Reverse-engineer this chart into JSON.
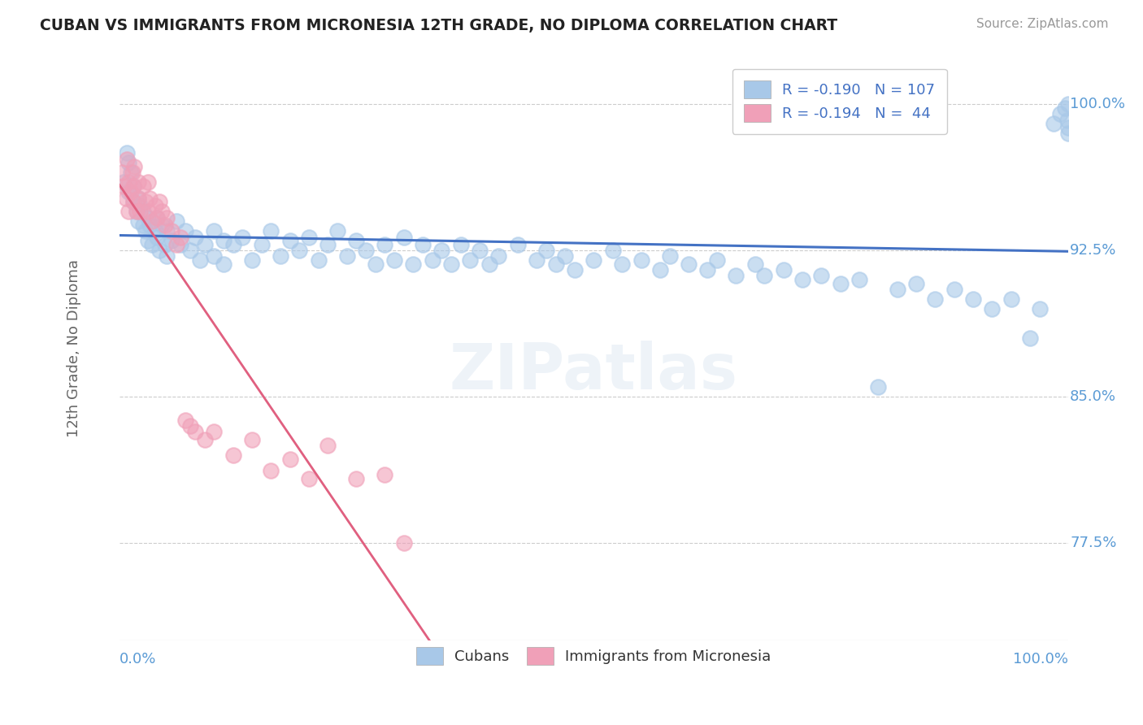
{
  "title": "CUBAN VS IMMIGRANTS FROM MICRONESIA 12TH GRADE, NO DIPLOMA CORRELATION CHART",
  "source": "Source: ZipAtlas.com",
  "ylabel": "12th Grade, No Diploma",
  "xmin": 0.0,
  "xmax": 1.0,
  "ymin": 0.725,
  "ymax": 1.025,
  "yticks": [
    0.775,
    0.85,
    0.925,
    1.0
  ],
  "ytick_labels": [
    "77.5%",
    "85.0%",
    "92.5%",
    "100.0%"
  ],
  "xtick_labels": [
    "0.0%",
    "100.0%"
  ],
  "cubans_R": -0.19,
  "cubans_N": 107,
  "micronesia_R": -0.194,
  "micronesia_N": 44,
  "blue_dot_color": "#a8c8e8",
  "pink_dot_color": "#f0a0b8",
  "blue_line_color": "#4472c4",
  "pink_line_color": "#e06080",
  "pink_dash_color": "#f4b8c8",
  "background_color": "#ffffff",
  "grid_color": "#cccccc",
  "axis_label_color": "#666666",
  "tick_label_color": "#5b9bd5",
  "watermark": "ZIPatlas",
  "blue_x": [
    0.005,
    0.008,
    0.01,
    0.01,
    0.012,
    0.015,
    0.015,
    0.018,
    0.02,
    0.02,
    0.022,
    0.025,
    0.025,
    0.028,
    0.03,
    0.03,
    0.032,
    0.035,
    0.038,
    0.04,
    0.04,
    0.042,
    0.045,
    0.048,
    0.05,
    0.05,
    0.055,
    0.06,
    0.065,
    0.07,
    0.075,
    0.08,
    0.085,
    0.09,
    0.1,
    0.1,
    0.11,
    0.11,
    0.12,
    0.13,
    0.14,
    0.15,
    0.16,
    0.17,
    0.18,
    0.19,
    0.2,
    0.21,
    0.22,
    0.23,
    0.24,
    0.25,
    0.26,
    0.27,
    0.28,
    0.29,
    0.3,
    0.31,
    0.32,
    0.33,
    0.34,
    0.35,
    0.36,
    0.37,
    0.38,
    0.39,
    0.4,
    0.42,
    0.44,
    0.45,
    0.46,
    0.47,
    0.48,
    0.5,
    0.52,
    0.53,
    0.55,
    0.57,
    0.58,
    0.6,
    0.62,
    0.63,
    0.65,
    0.67,
    0.68,
    0.7,
    0.72,
    0.74,
    0.76,
    0.78,
    0.8,
    0.82,
    0.84,
    0.86,
    0.88,
    0.9,
    0.92,
    0.94,
    0.96,
    0.97,
    0.985,
    0.992,
    0.997,
    0.999,
    1.0,
    1.0,
    1.0
  ],
  "blue_y": [
    0.96,
    0.975,
    0.955,
    0.97,
    0.965,
    0.95,
    0.958,
    0.945,
    0.952,
    0.94,
    0.948,
    0.938,
    0.945,
    0.935,
    0.942,
    0.93,
    0.938,
    0.928,
    0.935,
    0.942,
    0.932,
    0.925,
    0.938,
    0.928,
    0.935,
    0.922,
    0.93,
    0.94,
    0.928,
    0.935,
    0.925,
    0.932,
    0.92,
    0.928,
    0.935,
    0.922,
    0.93,
    0.918,
    0.928,
    0.932,
    0.92,
    0.928,
    0.935,
    0.922,
    0.93,
    0.925,
    0.932,
    0.92,
    0.928,
    0.935,
    0.922,
    0.93,
    0.925,
    0.918,
    0.928,
    0.92,
    0.932,
    0.918,
    0.928,
    0.92,
    0.925,
    0.918,
    0.928,
    0.92,
    0.925,
    0.918,
    0.922,
    0.928,
    0.92,
    0.925,
    0.918,
    0.922,
    0.915,
    0.92,
    0.925,
    0.918,
    0.92,
    0.915,
    0.922,
    0.918,
    0.915,
    0.92,
    0.912,
    0.918,
    0.912,
    0.915,
    0.91,
    0.912,
    0.908,
    0.91,
    0.855,
    0.905,
    0.908,
    0.9,
    0.905,
    0.9,
    0.895,
    0.9,
    0.88,
    0.895,
    0.99,
    0.995,
    0.998,
    0.992,
    0.988,
    0.985,
    1.0
  ],
  "pink_x": [
    0.003,
    0.005,
    0.007,
    0.008,
    0.01,
    0.01,
    0.012,
    0.014,
    0.015,
    0.015,
    0.016,
    0.018,
    0.02,
    0.02,
    0.022,
    0.025,
    0.028,
    0.03,
    0.03,
    0.032,
    0.035,
    0.038,
    0.04,
    0.042,
    0.045,
    0.048,
    0.05,
    0.055,
    0.06,
    0.065,
    0.07,
    0.075,
    0.08,
    0.09,
    0.1,
    0.12,
    0.14,
    0.16,
    0.18,
    0.2,
    0.22,
    0.25,
    0.28,
    0.3
  ],
  "pink_y": [
    0.965,
    0.958,
    0.952,
    0.972,
    0.96,
    0.945,
    0.955,
    0.965,
    0.958,
    0.95,
    0.968,
    0.945,
    0.96,
    0.952,
    0.945,
    0.958,
    0.95,
    0.945,
    0.96,
    0.952,
    0.94,
    0.948,
    0.942,
    0.95,
    0.945,
    0.938,
    0.942,
    0.935,
    0.928,
    0.932,
    0.838,
    0.835,
    0.832,
    0.828,
    0.832,
    0.82,
    0.828,
    0.812,
    0.818,
    0.808,
    0.825,
    0.808,
    0.81,
    0.775
  ]
}
